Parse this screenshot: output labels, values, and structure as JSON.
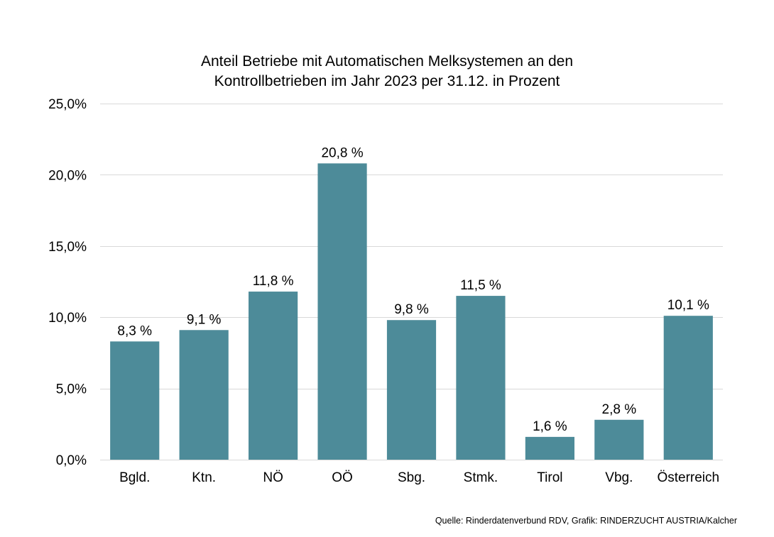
{
  "chart_data": {
    "type": "bar",
    "title": [
      "Anteil Betriebe mit Automatischen Melksystemen an den",
      "Kontrollbetrieben im Jahr 2023 per 31.12. in Prozent"
    ],
    "categories": [
      "Bgld.",
      "Ktn.",
      "NÖ",
      "OÖ",
      "Sbg.",
      "Stmk.",
      "Tirol",
      "Vbg.",
      "Österreich"
    ],
    "values": [
      8.3,
      9.1,
      11.8,
      20.8,
      9.8,
      11.5,
      1.6,
      2.8,
      10.1
    ],
    "data_labels": [
      "8,3 %",
      "9,1 %",
      "11,8 %",
      "20,8 %",
      "9,8 %",
      "11,5 %",
      "1,6 %",
      "2,8 %",
      "10,1 %"
    ],
    "yticks": [
      0,
      5,
      10,
      15,
      20,
      25
    ],
    "ytick_labels": [
      "0,0%",
      "5,0%",
      "10,0%",
      "15,0%",
      "20,0%",
      "25,0%"
    ],
    "ylim": [
      0,
      25
    ],
    "xlabel": "",
    "ylabel": "",
    "grid": true,
    "legend": "none",
    "bar_color": "#4d8b99"
  },
  "source": "Quelle: Rinderdatenverbund RDV, Grafik: RINDERZUCHT AUSTRIA/Kalcher"
}
